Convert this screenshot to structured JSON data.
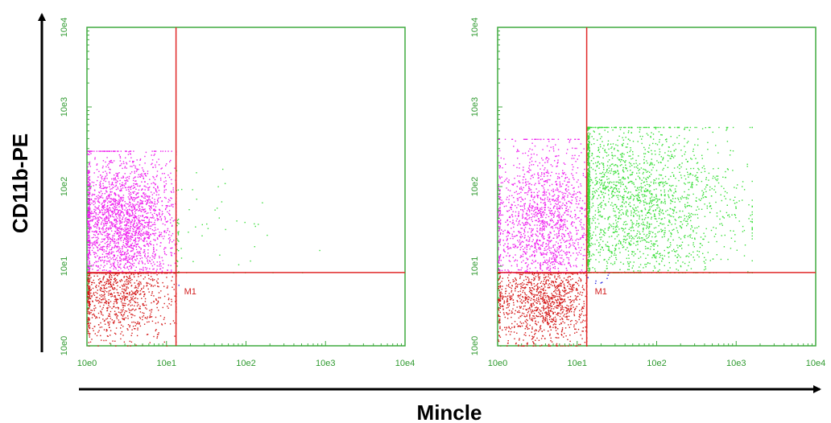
{
  "figure": {
    "x_title": "Mincle",
    "y_title": "CD11b-PE"
  },
  "colors": {
    "frame": "#3faa3f",
    "tick_text": "#2f9a2f",
    "gate_line": "#e02828",
    "magenta": "#ee22ee",
    "red": "#d41a1a",
    "green": "#3adf3a",
    "blue": "#2a2ae0"
  },
  "chart_data": [
    {
      "type": "scatter",
      "xscale": "log",
      "yscale": "log",
      "xlim": [
        "10e0",
        "10e4"
      ],
      "ylim": [
        "10e0",
        "10e4"
      ],
      "x_tick_labels": [
        "10e0",
        "10e1",
        "10e2",
        "10e3",
        "10e4"
      ],
      "y_tick_labels": [
        "10e0",
        "10e1",
        "10e2",
        "10e3",
        "10e4"
      ],
      "marker_label": "M1",
      "gate": {
        "x_log": 1.12,
        "y_log": 0.92
      },
      "populations": [
        {
          "quadrant": "upper-left",
          "color_key": "magenta",
          "count": 2600,
          "x_log_range": [
            0.0,
            1.12
          ],
          "y_log_range": [
            0.92,
            2.45
          ],
          "x_log_center": 0.45,
          "y_log_center": 1.5
        },
        {
          "quadrant": "lower-left",
          "color_key": "red",
          "count": 1000,
          "x_log_range": [
            0.0,
            1.12
          ],
          "y_log_range": [
            0.0,
            0.92
          ],
          "x_log_center": 0.4,
          "y_log_center": 0.65
        },
        {
          "quadrant": "upper-right",
          "color_key": "green",
          "count": 70,
          "x_log_range": [
            1.12,
            3.2
          ],
          "y_log_range": [
            0.92,
            2.4
          ],
          "x_log_center": 1.3,
          "y_log_center": 1.4
        },
        {
          "quadrant": "lower-right",
          "color_key": "blue",
          "count": 1,
          "x_log_range": [
            1.12,
            1.3
          ],
          "y_log_range": [
            0.75,
            0.92
          ],
          "x_log_center": 1.2,
          "y_log_center": 0.85
        }
      ]
    },
    {
      "type": "scatter",
      "xscale": "log",
      "yscale": "log",
      "xlim": [
        "10e0",
        "10e4"
      ],
      "ylim": [
        "10e0",
        "10e4"
      ],
      "x_tick_labels": [
        "10e0",
        "10e1",
        "10e2",
        "10e3",
        "10e4"
      ],
      "y_tick_labels": [
        "10e0",
        "10e1",
        "10e2",
        "10e3",
        "10e4"
      ],
      "marker_label": "M1",
      "gate": {
        "x_log": 1.12,
        "y_log": 0.92
      },
      "populations": [
        {
          "quadrant": "upper-left",
          "color_key": "magenta",
          "count": 1800,
          "x_log_range": [
            0.0,
            1.12
          ],
          "y_log_range": [
            0.92,
            2.6
          ],
          "x_log_center": 0.6,
          "y_log_center": 1.5
        },
        {
          "quadrant": "lower-left",
          "color_key": "red",
          "count": 1300,
          "x_log_range": [
            0.0,
            1.12
          ],
          "y_log_range": [
            0.0,
            0.92
          ],
          "x_log_center": 0.6,
          "y_log_center": 0.55
        },
        {
          "quadrant": "upper-right",
          "color_key": "green",
          "count": 2600,
          "x_log_range": [
            1.12,
            3.2
          ],
          "y_log_range": [
            0.92,
            2.75
          ],
          "x_log_center": 1.6,
          "y_log_center": 1.8
        },
        {
          "quadrant": "lower-right",
          "color_key": "blue",
          "count": 8,
          "x_log_range": [
            1.12,
            1.4
          ],
          "y_log_range": [
            0.75,
            0.92
          ],
          "x_log_center": 1.25,
          "y_log_center": 0.85
        }
      ]
    }
  ]
}
